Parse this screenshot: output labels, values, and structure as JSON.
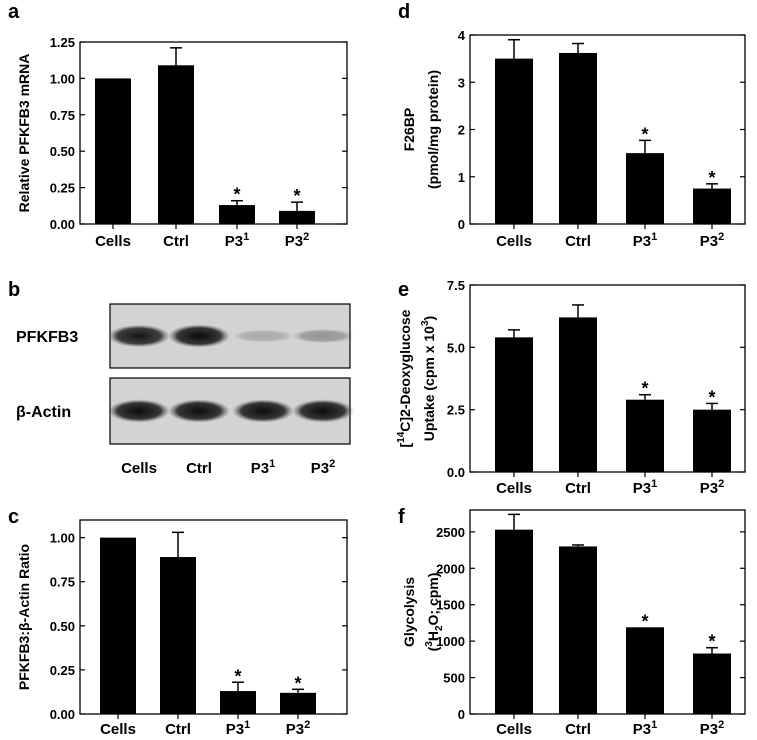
{
  "chart_data": [
    {
      "panel": "a",
      "type": "bar",
      "categories": [
        {
          "base": "Cells",
          "sup": ""
        },
        {
          "base": "Ctrl",
          "sup": ""
        },
        {
          "base": "P3",
          "sup": "1"
        },
        {
          "base": "P3",
          "sup": "2"
        }
      ],
      "values": [
        1.0,
        1.09,
        0.13,
        0.09
      ],
      "errors": [
        0,
        0.12,
        0.03,
        0.06
      ],
      "significant": [
        false,
        false,
        true,
        true
      ],
      "ylabel": {
        "lines": [
          [
            {
              "t": "Relative PFKFB3 mRNA"
            }
          ]
        ]
      },
      "ylim": [
        0,
        1.25
      ],
      "yticks": [
        0,
        0.25,
        0.5,
        0.75,
        1.0,
        1.25
      ],
      "ytick_labels": [
        "0.00",
        "0.25",
        "0.50",
        "0.75",
        "1.00",
        "1.25"
      ]
    },
    {
      "panel": "b",
      "type": "blot",
      "categories": [
        {
          "base": "Cells",
          "sup": ""
        },
        {
          "base": "Ctrl",
          "sup": ""
        },
        {
          "base": "P3",
          "sup": "1"
        },
        {
          "base": "P3",
          "sup": "2"
        }
      ],
      "bands": [
        {
          "label": "PFKFB3",
          "intensity": [
            0.9,
            0.95,
            0.2,
            0.3
          ]
        },
        {
          "label": "β-Actin",
          "intensity": [
            0.95,
            0.95,
            0.95,
            0.95
          ]
        }
      ]
    },
    {
      "panel": "c",
      "type": "bar",
      "categories": [
        {
          "base": "Cells",
          "sup": ""
        },
        {
          "base": "Ctrl",
          "sup": ""
        },
        {
          "base": "P3",
          "sup": "1"
        },
        {
          "base": "P3",
          "sup": "2"
        }
      ],
      "values": [
        1.0,
        0.89,
        0.13,
        0.12
      ],
      "errors": [
        0,
        0.14,
        0.05,
        0.02
      ],
      "significant": [
        false,
        false,
        true,
        true
      ],
      "ylabel": {
        "lines": [
          [
            {
              "t": "PFKFB3:β-Actin Ratio"
            }
          ]
        ]
      },
      "ylim": [
        0,
        1.1
      ],
      "yticks": [
        0,
        0.25,
        0.5,
        0.75,
        1.0
      ],
      "ytick_labels": [
        "0.00",
        "0.25",
        "0.50",
        "0.75",
        "1.00"
      ]
    },
    {
      "panel": "d",
      "type": "bar",
      "categories": [
        {
          "base": "Cells",
          "sup": ""
        },
        {
          "base": "Ctrl",
          "sup": ""
        },
        {
          "base": "P3",
          "sup": "1"
        },
        {
          "base": "P3",
          "sup": "2"
        }
      ],
      "values": [
        3.5,
        3.62,
        1.5,
        0.75
      ],
      "errors": [
        0.4,
        0.2,
        0.27,
        0.1
      ],
      "significant": [
        false,
        false,
        true,
        true
      ],
      "ylabel": {
        "lines": [
          [
            {
              "t": "F26BP"
            }
          ],
          [
            {
              "t": "(pmol/mg protein)"
            }
          ]
        ]
      },
      "ylim": [
        0,
        4
      ],
      "yticks": [
        0,
        1,
        2,
        3,
        4
      ],
      "ytick_labels": [
        "0",
        "1",
        "2",
        "3",
        "4"
      ]
    },
    {
      "panel": "e",
      "type": "bar",
      "categories": [
        {
          "base": "Cells",
          "sup": ""
        },
        {
          "base": "Ctrl",
          "sup": ""
        },
        {
          "base": "P3",
          "sup": "1"
        },
        {
          "base": "P3",
          "sup": "2"
        }
      ],
      "values": [
        5.4,
        6.2,
        2.9,
        2.5
      ],
      "errors": [
        0.3,
        0.5,
        0.2,
        0.25
      ],
      "significant": [
        false,
        false,
        true,
        true
      ],
      "ylabel": {
        "lines": [
          [
            {
              "t": "["
            },
            {
              "t": "14",
              "sup": true
            },
            {
              "t": "C]2-Deoxyglucose"
            }
          ],
          [
            {
              "t": "Uptake (cpm x 10"
            },
            {
              "t": "3",
              "sup": true
            },
            {
              "t": ")"
            }
          ]
        ]
      },
      "ylim": [
        0,
        7.5
      ],
      "yticks": [
        0,
        2.5,
        5.0,
        7.5
      ],
      "ytick_labels": [
        "0.0",
        "2.5",
        "5.0",
        "7.5"
      ]
    },
    {
      "panel": "f",
      "type": "bar",
      "categories": [
        {
          "base": "Cells",
          "sup": ""
        },
        {
          "base": "Ctrl",
          "sup": ""
        },
        {
          "base": "P3",
          "sup": "1"
        },
        {
          "base": "P3",
          "sup": "2"
        }
      ],
      "values": [
        2530,
        2300,
        1190,
        830
      ],
      "errors": [
        210,
        20,
        0,
        80
      ],
      "significant": [
        false,
        false,
        true,
        true
      ],
      "ylabel": {
        "lines": [
          [
            {
              "t": "Glycolysis"
            }
          ],
          [
            {
              "t": "("
            },
            {
              "t": "3",
              "sup": true
            },
            {
              "t": "H"
            },
            {
              "t": "2",
              "sub": true
            },
            {
              "t": "O; cpm)"
            }
          ]
        ]
      },
      "ylim": [
        0,
        2800
      ],
      "yticks": [
        0,
        500,
        1000,
        1500,
        2000,
        2500
      ],
      "ytick_labels": [
        "0",
        "500",
        "1000",
        "1500",
        "2000",
        "2500"
      ]
    }
  ]
}
